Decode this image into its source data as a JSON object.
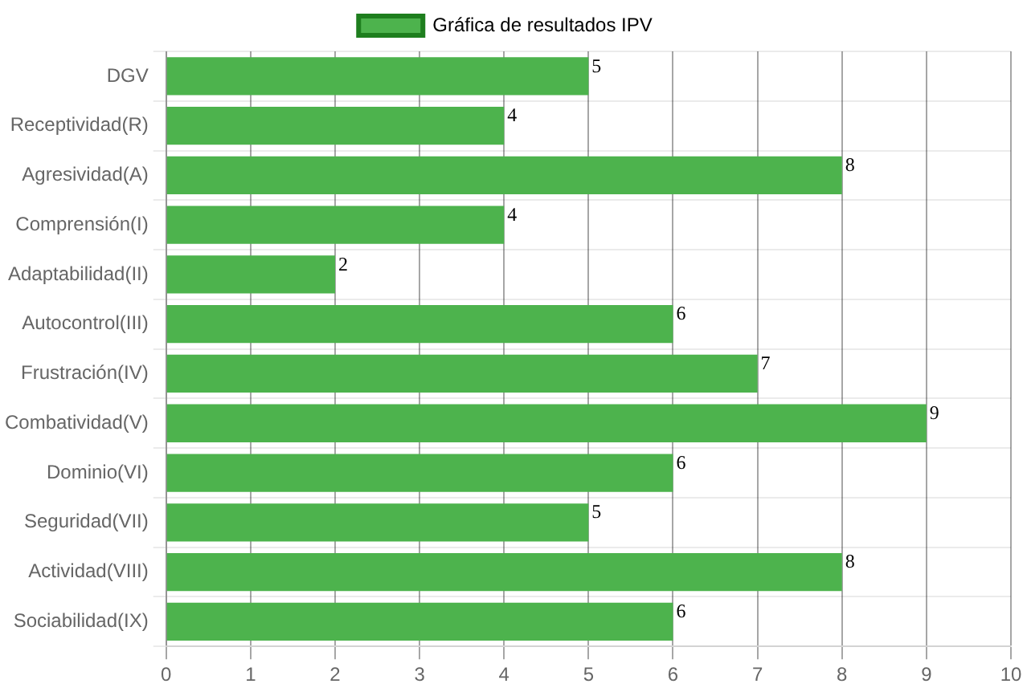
{
  "chart_data": {
    "type": "bar",
    "orientation": "horizontal",
    "categories": [
      "DGV",
      "Receptividad(R)",
      "Agresividad(A)",
      "Comprensión(I)",
      "Adaptabilidad(II)",
      "Autocontrol(III)",
      "Frustración(IV)",
      "Combatividad(V)",
      "Dominio(VI)",
      "Seguridad(VII)",
      "Actividad(VIII)",
      "Sociabilidad(IX)"
    ],
    "series": [
      {
        "name": "Gráfica de resultados IPV",
        "color": "#4db34d",
        "values": [
          5,
          4,
          8,
          4,
          2,
          6,
          7,
          9,
          6,
          5,
          8,
          6
        ]
      }
    ],
    "xlim": [
      0,
      10
    ],
    "xticks": [
      0,
      1,
      2,
      3,
      4,
      5,
      6,
      7,
      8,
      9,
      10
    ],
    "grid": true,
    "legend": "top",
    "data_labels": true
  }
}
